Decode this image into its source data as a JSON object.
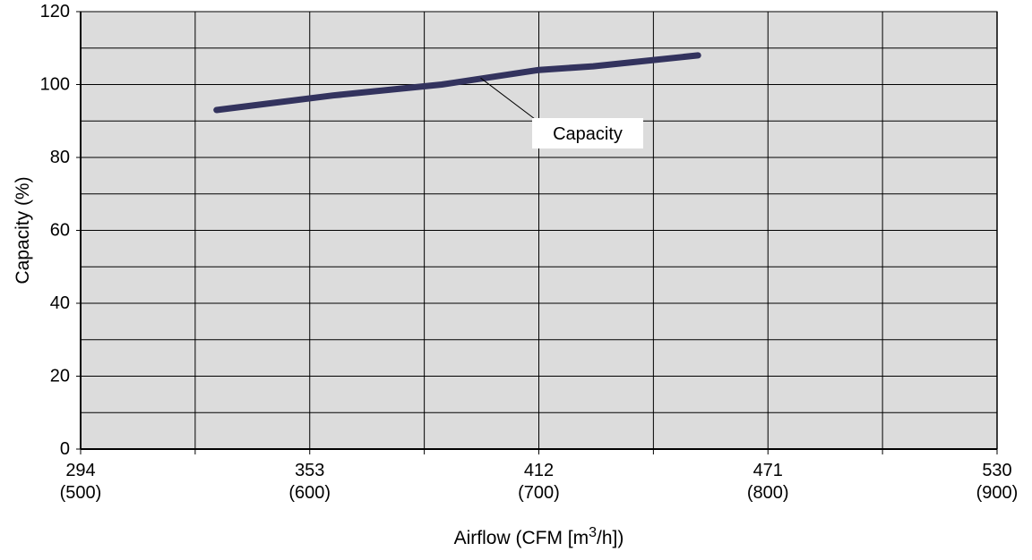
{
  "chart_data": {
    "type": "line",
    "xlabel_prefix": "Airflow (CFM [m",
    "xlabel_sup": "3",
    "xlabel_suffix": "/h])",
    "ylabel": "Capacity (%)",
    "xlim": [
      294,
      530
    ],
    "ylim": [
      0,
      120
    ],
    "x_ticks": [
      {
        "value": 294,
        "label": "294",
        "sublabel": "(500)"
      },
      {
        "value": 353,
        "label": "353",
        "sublabel": "(600)"
      },
      {
        "value": 412,
        "label": "412",
        "sublabel": "(700)"
      },
      {
        "value": 471,
        "label": "471",
        "sublabel": "(800)"
      },
      {
        "value": 530,
        "label": "530",
        "sublabel": "(900)"
      }
    ],
    "x_minor_gridlines": [
      323.5,
      382.5,
      441.5,
      500.5
    ],
    "y_ticks": [
      0,
      20,
      40,
      60,
      80,
      100,
      120
    ],
    "y_minor_gridlines": [
      10,
      30,
      50,
      70,
      90,
      110
    ],
    "grid": true,
    "series": [
      {
        "name": "Capacity",
        "x": [
          329,
          359,
          387,
          412,
          426,
          453
        ],
        "y": [
          93,
          97,
          100,
          104,
          105,
          108
        ]
      }
    ],
    "annotation": {
      "text": "Capacity",
      "points_to_x": 397,
      "points_to_y": 101.8,
      "x": 400,
      "y": 86
    },
    "colors": {
      "plot_background": "#dcdcdc",
      "line": "#33335e",
      "grid": "#000000"
    }
  }
}
